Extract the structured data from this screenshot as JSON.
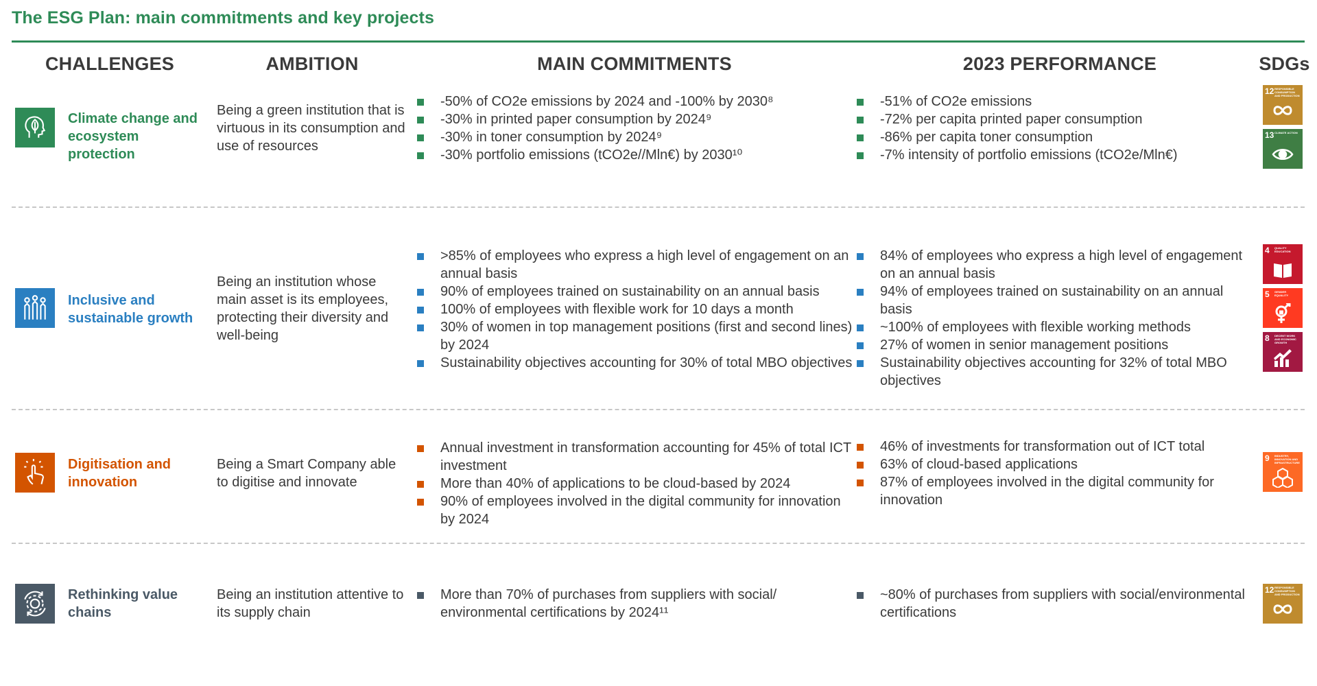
{
  "title": "The ESG Plan: main commitments and key projects",
  "headers": {
    "challenges": "CHALLENGES",
    "ambition": "AMBITION",
    "commitments": "MAIN COMMITMENTS",
    "performance": "2023 PERFORMANCE",
    "sdgs": "SDGs"
  },
  "colors": {
    "green": "#2e8b57",
    "blue": "#2a7fc1",
    "orange": "#d35400",
    "slate": "#4a5966"
  },
  "rows": [
    {
      "title": "Climate change and ecosystem protection",
      "icon": "leaf-head-icon",
      "ambition": "Being a green institution that is virtuous in its consumption and use of resources",
      "commitments": [
        "-50% of CO2e emissions by 2024 and -100% by 2030⁸",
        "-30% in printed paper consumption by 2024⁹",
        "-30% in toner consumption by 2024⁹",
        "-30% portfolio emissions (tCO2e//Mln€) by 2030¹⁰"
      ],
      "performance": [
        "-51% of CO2e emissions",
        "-72% per capita printed paper consumption",
        "-86% per capita toner consumption",
        "-7% intensity of portfolio emissions (tCO2e/Mln€)"
      ],
      "sdgs": [
        {
          "num": "12",
          "caption": "Responsible consumption and production",
          "color": "#bf8b2e",
          "icon": "infinity-icon"
        },
        {
          "num": "13",
          "caption": "Climate action",
          "color": "#3f7e44",
          "icon": "eye-globe-icon"
        }
      ]
    },
    {
      "title": "Inclusive and sustainable growth",
      "icon": "people-growth-icon",
      "ambition": "Being an institution whose main asset is its employees, protecting their diversity and well-being",
      "commitments": [
        ">85% of employees who express a high level of engagement on an annual basis",
        "90% of employees trained on sustainability on an annual basis",
        "100% of employees with flexible work for 10 days a month",
        "30% of women in top management positions (first and second lines) by 2024",
        "Sustainability objectives accounting for 30% of total MBO objectives"
      ],
      "performance": [
        "84% of employees who express a high level of engagement on an annual basis",
        "94% of employees trained on sustainability on an annual basis",
        "~100% of employees with flexible working methods",
        "27% of women in senior management positions",
        "Sustainability objectives accounting for 32% of total MBO objectives"
      ],
      "sdgs": [
        {
          "num": "4",
          "caption": "Quality education",
          "color": "#c5192d",
          "icon": "book-icon"
        },
        {
          "num": "5",
          "caption": "Gender equality",
          "color": "#ff3a21",
          "icon": "gender-icon"
        },
        {
          "num": "8",
          "caption": "Decent work and economic growth",
          "color": "#a21942",
          "icon": "growth-chart-icon"
        }
      ]
    },
    {
      "title": "Digitisation and innovation",
      "icon": "touch-hand-icon",
      "ambition": "Being a Smart Company able to digitise and innovate",
      "commitments": [
        "Annual investment in transformation accounting for 45% of total ICT investment",
        "More than 40% of applications to be cloud-based by 2024",
        "90% of employees involved in the digital community for innovation by 2024"
      ],
      "performance": [
        "46% of investments for transformation out of ICT total",
        "63% of cloud-based applications",
        "87% of employees involved in the digital community for innovation"
      ],
      "sdgs": [
        {
          "num": "9",
          "caption": "Industry, innovation and infrastructure",
          "color": "#fd6925",
          "icon": "cubes-icon"
        }
      ]
    },
    {
      "title": "Rethinking value chains",
      "icon": "cycle-gear-icon",
      "ambition": "Being an institution attentive to its supply chain",
      "commitments": [
        "More than 70% of purchases from suppliers with social/ environmental certifications by 2024¹¹"
      ],
      "performance": [
        "~80% of purchases from suppliers with social/environmental certifications"
      ],
      "sdgs": [
        {
          "num": "12",
          "caption": "Responsible consumption and production",
          "color": "#bf8b2e",
          "icon": "infinity-icon"
        }
      ]
    }
  ]
}
